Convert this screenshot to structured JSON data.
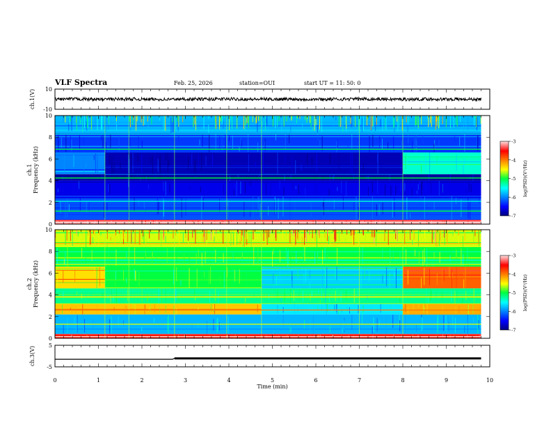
{
  "header": {
    "title": "VLF Spectra",
    "date": "Feb. 25, 2026",
    "station": "station=OUI",
    "start": "start  UT =   11: 50: 0"
  },
  "colorbar": {
    "label": "log(PSD)(V²/Hz)",
    "ticks": [
      "-3",
      "-4",
      "-5",
      "-6",
      "-7"
    ]
  },
  "chart_data": [
    {
      "type": "line",
      "panel": "ch1_waveform",
      "ylabel": "ch.1(V)",
      "ylim": [
        -10,
        10
      ],
      "yticks": [
        "10",
        "-10"
      ],
      "xlim": [
        0,
        10
      ],
      "x": [
        0,
        0.5,
        1,
        1.5,
        2,
        2.5,
        3,
        3.5,
        4,
        4.5,
        5,
        5.5,
        6,
        6.5,
        7,
        7.5,
        8,
        8.5,
        9,
        9.5,
        9.8
      ],
      "y": [
        0,
        0.2,
        -0.1,
        0.1,
        0,
        -0.2,
        0.1,
        0,
        0.2,
        -0.1,
        0,
        0.1,
        -0.1,
        0,
        0.2,
        0,
        -0.1,
        0.1,
        0,
        -0.1,
        0
      ]
    },
    {
      "type": "heatmap",
      "panel": "ch1_spectrogram",
      "ylabel": "ch.1\nFrequency (kHz)",
      "xlim": [
        0,
        10
      ],
      "ylim": [
        0,
        10
      ],
      "yticks": [
        "0",
        "2",
        "4",
        "6",
        "8",
        "10"
      ],
      "colorbar_range": [
        -7,
        -3
      ],
      "bands": [
        {
          "f0": 0,
          "f1": 0.4,
          "t0": 0,
          "t1": 9.8,
          "level": -3.2
        },
        {
          "f0": 0.4,
          "f1": 2.6,
          "t0": 0,
          "t1": 9.8,
          "level": -6.2
        },
        {
          "f0": 2.6,
          "f1": 4.0,
          "t0": 0,
          "t1": 9.8,
          "level": -6.6
        },
        {
          "f0": 4.0,
          "f1": 4.6,
          "t0": 0,
          "t1": 9.8,
          "level": -6.9
        },
        {
          "f0": 4.6,
          "f1": 6.6,
          "t0": 0,
          "t1": 1.15,
          "level": -6.0
        },
        {
          "f0": 4.6,
          "f1": 6.6,
          "t0": 1.15,
          "t1": 8.0,
          "level": -6.8
        },
        {
          "f0": 4.6,
          "f1": 6.6,
          "t0": 8.0,
          "t1": 9.8,
          "level": -5.4
        },
        {
          "f0": 6.6,
          "f1": 8.4,
          "t0": 0,
          "t1": 9.8,
          "level": -6.3
        },
        {
          "f0": 8.4,
          "f1": 10,
          "t0": 0,
          "t1": 9.8,
          "level": -5.8
        }
      ]
    },
    {
      "type": "heatmap",
      "panel": "ch2_spectrogram",
      "ylabel": "ch.2\nFrequency (kHz)",
      "xlim": [
        0,
        10
      ],
      "ylim": [
        0,
        10
      ],
      "yticks": [
        "0",
        "2",
        "4",
        "6",
        "8",
        "10"
      ],
      "colorbar_range": [
        -7,
        -3
      ],
      "bands": [
        {
          "f0": 0,
          "f1": 0.4,
          "t0": 0,
          "t1": 9.8,
          "level": -3.6
        },
        {
          "f0": 0.4,
          "f1": 2.2,
          "t0": 0,
          "t1": 9.8,
          "level": -5.8
        },
        {
          "f0": 2.2,
          "f1": 3.2,
          "t0": 0,
          "t1": 4.75,
          "level": -4.3
        },
        {
          "f0": 2.2,
          "f1": 3.2,
          "t0": 4.75,
          "t1": 8.0,
          "level": -5.6
        },
        {
          "f0": 2.2,
          "f1": 3.2,
          "t0": 8.0,
          "t1": 9.8,
          "level": -4.2
        },
        {
          "f0": 3.2,
          "f1": 4.6,
          "t0": 0,
          "t1": 9.8,
          "level": -5.2
        },
        {
          "f0": 4.6,
          "f1": 6.6,
          "t0": 0,
          "t1": 1.15,
          "level": -4.4
        },
        {
          "f0": 4.6,
          "f1": 6.6,
          "t0": 1.15,
          "t1": 4.75,
          "level": -5.0
        },
        {
          "f0": 4.6,
          "f1": 6.6,
          "t0": 4.75,
          "t1": 8.0,
          "level": -5.7
        },
        {
          "f0": 4.6,
          "f1": 6.6,
          "t0": 8.0,
          "t1": 9.8,
          "level": -3.9
        },
        {
          "f0": 6.6,
          "f1": 8.4,
          "t0": 0,
          "t1": 9.8,
          "level": -5.0
        },
        {
          "f0": 8.4,
          "f1": 10,
          "t0": 0,
          "t1": 9.8,
          "level": -4.6
        }
      ]
    },
    {
      "type": "line",
      "panel": "ch3_waveform",
      "ylabel": "ch.3(V)",
      "ylim": [
        -5,
        5
      ],
      "yticks": [
        "5",
        "-5"
      ],
      "xlabel": "Time (min)",
      "xlim": [
        0,
        10
      ],
      "xticks": [
        "0",
        "1",
        "2",
        "3",
        "4",
        "5",
        "6",
        "7",
        "8",
        "9",
        "10"
      ],
      "x": [
        0,
        2.7,
        2.75,
        9.8
      ],
      "y": [
        -1.5,
        -1.5,
        -1.1,
        -1.1
      ]
    }
  ]
}
